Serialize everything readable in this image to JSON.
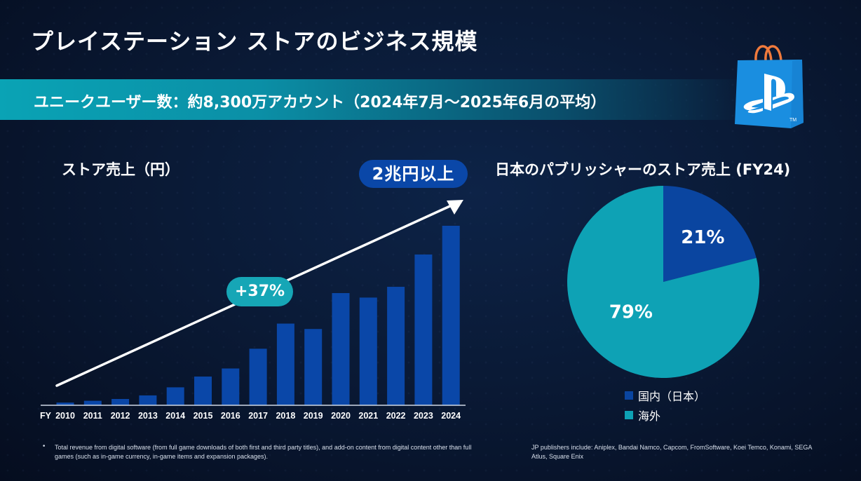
{
  "title": "プレイステーション ストアのビジネス規模",
  "banner": {
    "text": "ユニークユーザー数：約8,300万アカウント（2024年7月～2025年6月の平均）"
  },
  "logo": {
    "name": "playstation-store-bag",
    "trademark": "TM"
  },
  "colors": {
    "bar": "#0a47a8",
    "pie_domestic": "#0a45a0",
    "pie_overseas": "#0ea2b5",
    "growth_pill": "#16a6b6",
    "total_pill": "#0a47a8"
  },
  "chart_data": [
    {
      "type": "bar",
      "title": "ストア売上（円）",
      "categories": [
        "2010",
        "2011",
        "2012",
        "2013",
        "2014",
        "2015",
        "2016",
        "2017",
        "2018",
        "2019",
        "2020",
        "2021",
        "2022",
        "2023",
        "2024"
      ],
      "category_prefix": "FY",
      "values": [
        0.03,
        0.05,
        0.07,
        0.11,
        0.2,
        0.32,
        0.41,
        0.63,
        0.91,
        0.85,
        1.25,
        1.2,
        1.32,
        1.68,
        2.0
      ],
      "value_unit": "trillion yen (estimated from bar heights; no axis shown)",
      "ylim": [
        0,
        2.0
      ],
      "grid": false,
      "annotations": {
        "total_label": "2兆円以上",
        "growth_label": "+37%",
        "trend_arrow": true
      }
    },
    {
      "type": "pie",
      "title": "日本のパブリッシャーのストア売上 (FY24)",
      "slices": [
        {
          "label": "国内（日本）",
          "value": 21,
          "display": "21%"
        },
        {
          "label": "海外",
          "value": 79,
          "display": "79%"
        }
      ],
      "legend_position": "bottom"
    }
  ],
  "footnotes": {
    "bullet": "•",
    "left": "Total revenue from digital software (from full game downloads of both first and third party titles), and add-on content from digital content other than full games (such as in-game currency, in-game items and expansion packages).",
    "right": "JP publishers include: Aniplex, Bandai Namco, Capcom, FromSoftware, Koei Temco, Konami, SEGA Atlus, Square Enix"
  }
}
